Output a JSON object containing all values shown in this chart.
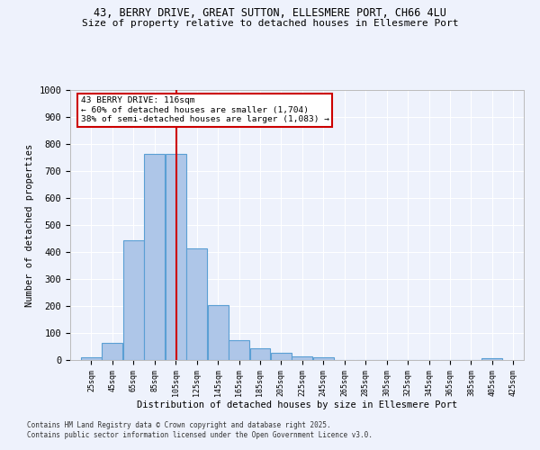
{
  "title_line1": "43, BERRY DRIVE, GREAT SUTTON, ELLESMERE PORT, CH66 4LU",
  "title_line2": "Size of property relative to detached houses in Ellesmere Port",
  "xlabel": "Distribution of detached houses by size in Ellesmere Port",
  "ylabel": "Number of detached properties",
  "footnote_line1": "Contains HM Land Registry data © Crown copyright and database right 2025.",
  "footnote_line2": "Contains public sector information licensed under the Open Government Licence v3.0.",
  "bar_edges": [
    25,
    45,
    65,
    85,
    105,
    125,
    145,
    165,
    185,
    205,
    225,
    245,
    265,
    285,
    305,
    325,
    345,
    365,
    385,
    405,
    425
  ],
  "bar_heights": [
    10,
    62,
    445,
    762,
    762,
    415,
    205,
    75,
    45,
    27,
    12,
    10,
    0,
    0,
    0,
    0,
    0,
    0,
    0,
    8
  ],
  "bar_color": "#aec6e8",
  "bar_edge_color": "#5a9fd4",
  "vline_x": 116,
  "vline_color": "#cc0000",
  "annotation_line1": "43 BERRY DRIVE: 116sqm",
  "annotation_line2": "← 60% of detached houses are smaller (1,704)",
  "annotation_line3": "38% of semi-detached houses are larger (1,083) →",
  "annotation_box_color": "#cc0000",
  "annotation_bg_color": "#ffffff",
  "ylim": [
    0,
    1000
  ],
  "yticks": [
    0,
    100,
    200,
    300,
    400,
    500,
    600,
    700,
    800,
    900,
    1000
  ],
  "bg_color": "#eef2fc",
  "grid_color": "#ffffff",
  "tick_labels": [
    "25sqm",
    "45sqm",
    "65sqm",
    "85sqm",
    "105sqm",
    "125sqm",
    "145sqm",
    "165sqm",
    "185sqm",
    "205sqm",
    "225sqm",
    "245sqm",
    "265sqm",
    "285sqm",
    "305sqm",
    "325sqm",
    "345sqm",
    "365sqm",
    "385sqm",
    "405sqm",
    "425sqm"
  ],
  "figsize": [
    6.0,
    5.0
  ],
  "dpi": 100
}
